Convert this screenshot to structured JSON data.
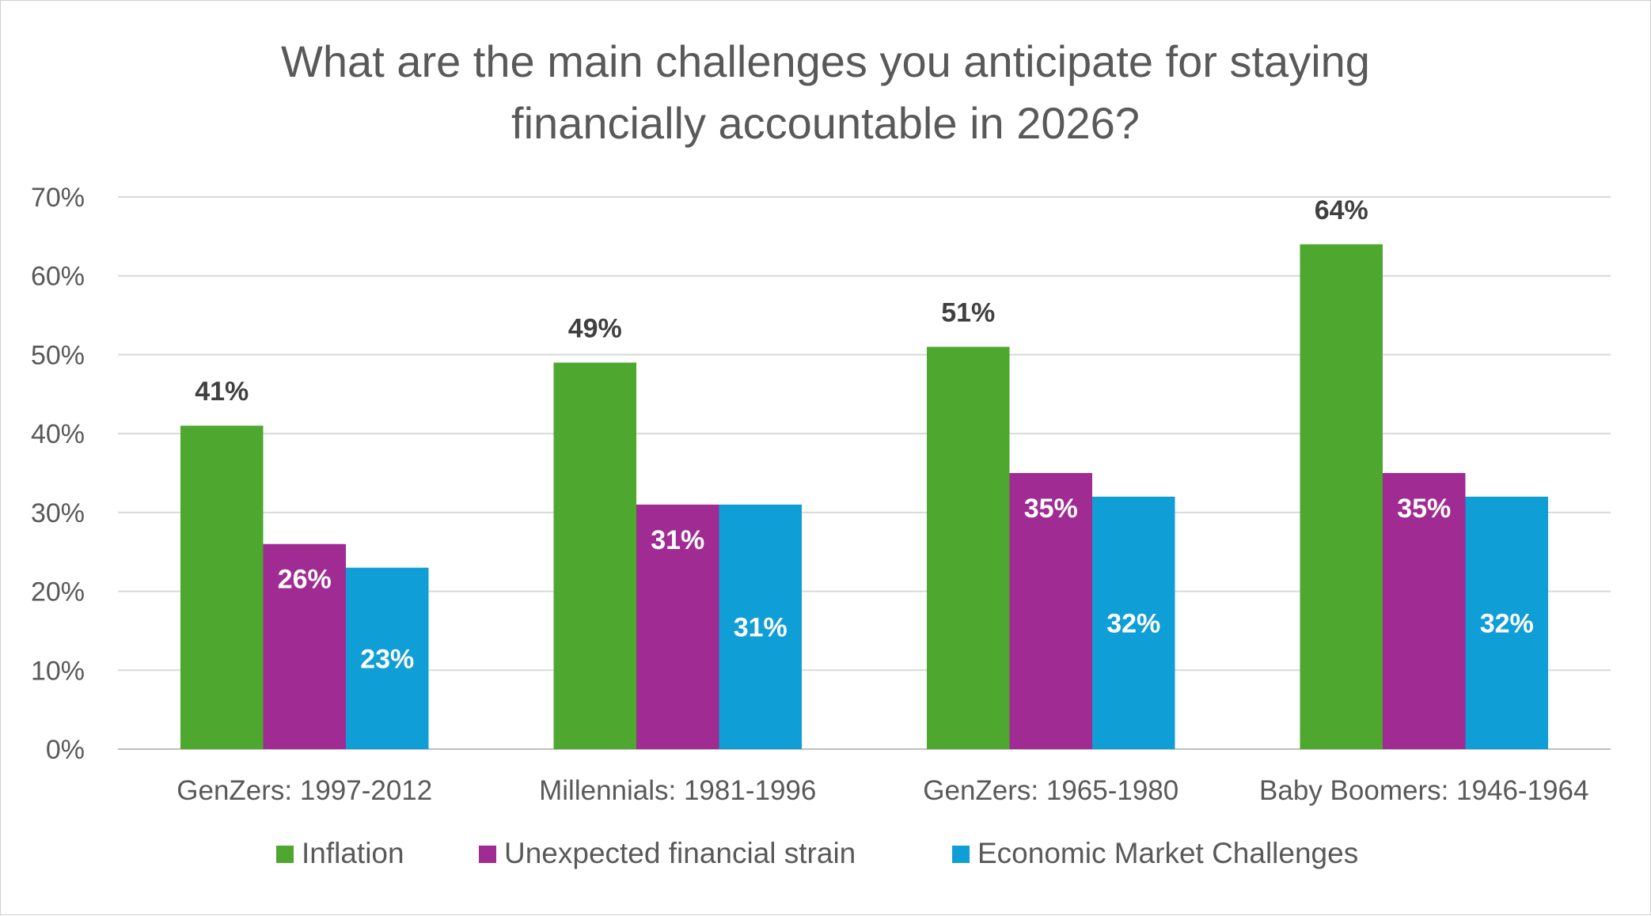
{
  "chart_data": {
    "type": "bar",
    "title_lines": [
      "What are the main challenges you anticipate for staying",
      "financially accountable in 2026?"
    ],
    "categories": [
      "GenZers: 1997-2012",
      "Millennials: 1981-1996",
      "GenZers: 1965-1980",
      "Baby Boomers: 1946-1964"
    ],
    "series": [
      {
        "name": "Inflation",
        "color": "#4EA72E",
        "values": [
          41,
          49,
          51,
          64
        ],
        "labels": [
          "41%",
          "49%",
          "51%",
          "64%"
        ],
        "label_position": "outside_end",
        "label_color": "#404040"
      },
      {
        "name": "Unexpected financial strain",
        "color": "#A02B93",
        "values": [
          26,
          31,
          35,
          35
        ],
        "labels": [
          "26%",
          "31%",
          "35%",
          "35%"
        ],
        "label_position": "inside_end",
        "label_color": "#FFFFFF"
      },
      {
        "name": "Economic Market Challenges",
        "color": "#0F9ED5",
        "values": [
          23,
          31,
          32,
          32
        ],
        "labels": [
          "23%",
          "31%",
          "32%",
          "32%"
        ],
        "label_position": "center",
        "label_color": "#FFFFFF"
      }
    ],
    "ylim": [
      0,
      70
    ],
    "y_ticks": [
      0,
      10,
      20,
      30,
      40,
      50,
      60,
      70
    ],
    "y_tick_labels": [
      "0%",
      "10%",
      "20%",
      "30%",
      "40%",
      "50%",
      "60%",
      "70%"
    ],
    "xlabel": "",
    "ylabel": "",
    "grid": true,
    "legend_position": "bottom"
  }
}
